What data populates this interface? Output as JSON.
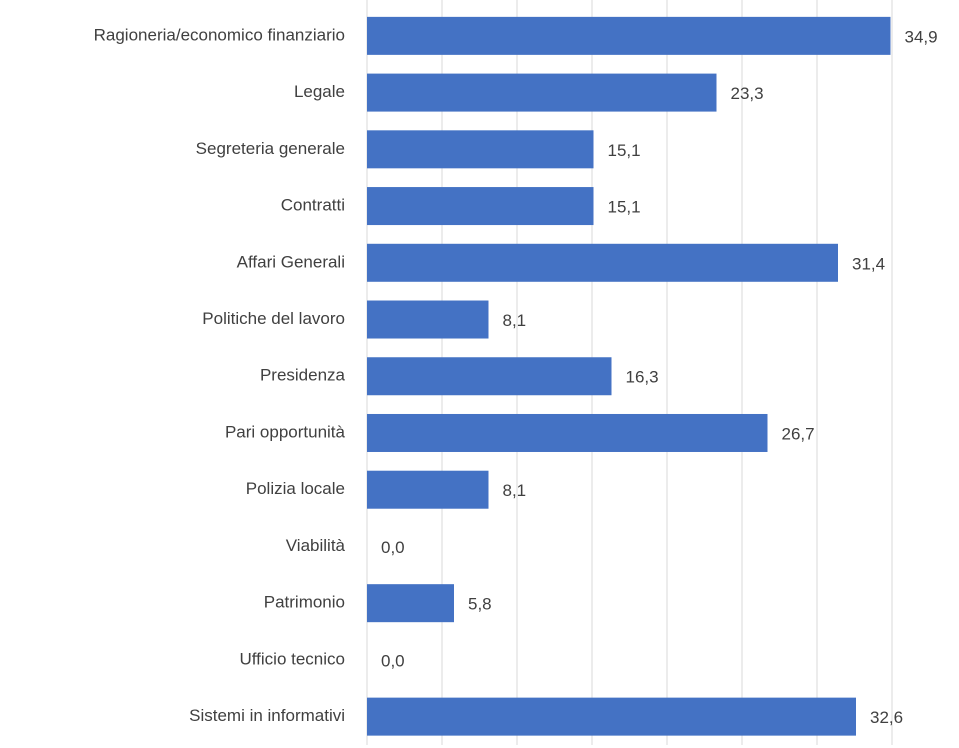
{
  "chart_data": {
    "type": "hbar",
    "categories": [
      "Ragioneria/economico finanziario",
      "Legale",
      "Segreteria generale",
      "Contratti",
      "Affari Generali",
      "Politiche del lavoro",
      "Presidenza",
      "Pari opportunità",
      "Polizia locale",
      "Viabilità",
      "Patrimonio",
      "Ufficio tecnico",
      "Sistemi in informativi"
    ],
    "values": [
      34.9,
      23.3,
      15.1,
      15.1,
      31.4,
      8.1,
      16.3,
      26.7,
      8.1,
      0.0,
      5.8,
      0.0,
      32.6
    ],
    "value_labels": [
      "34,9",
      "23,3",
      "15,1",
      "15,1",
      "31,4",
      "8,1",
      "16,3",
      "26,7",
      "8,1",
      "0,0",
      "5,8",
      "0,0",
      "32,6"
    ],
    "color": "#4472c4",
    "xlim": [
      0,
      35
    ],
    "xticks": [
      0,
      5,
      10,
      15,
      20,
      25,
      30,
      35
    ],
    "grid": true
  }
}
